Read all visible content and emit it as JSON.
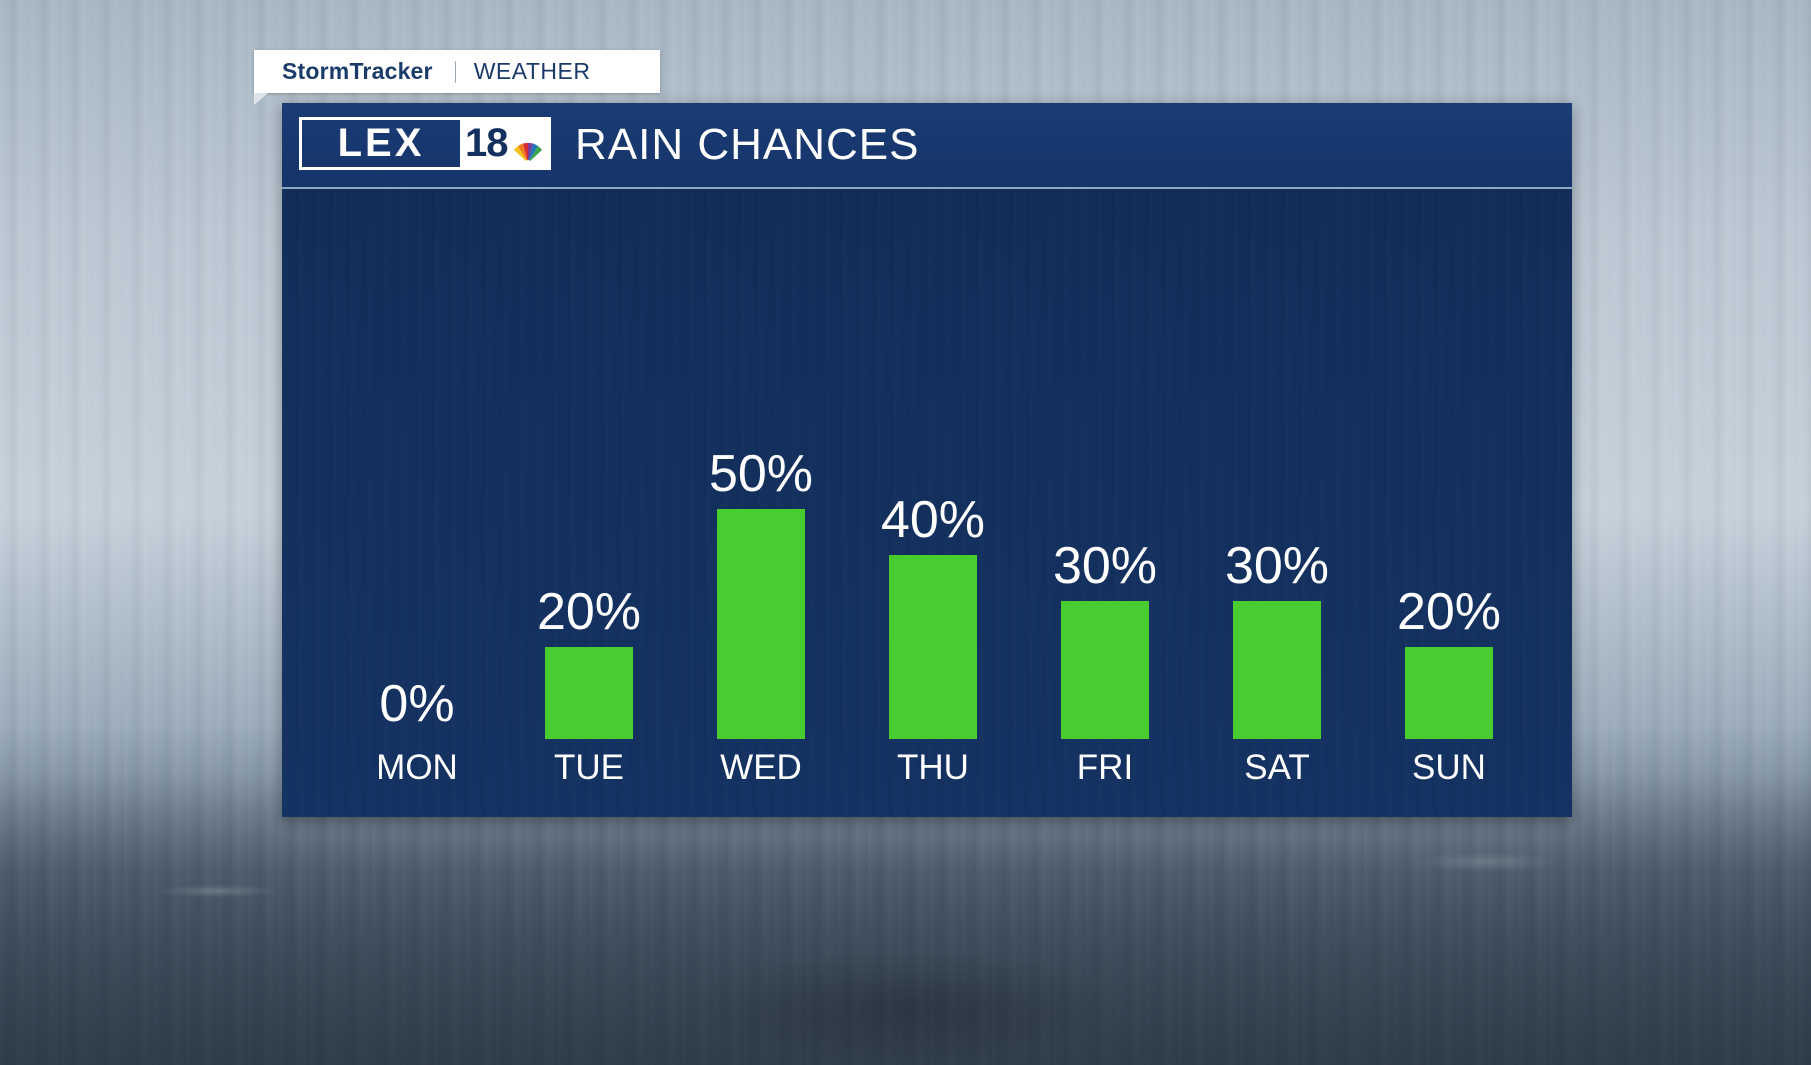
{
  "brand": {
    "storm": "StormTracker",
    "weather": "WEATHER"
  },
  "logo": {
    "lex": "LEX",
    "number": "18",
    "network_icon": "peacock-icon"
  },
  "panel": {
    "title": "RAIN CHANCES"
  },
  "colors": {
    "bar": "#48cc2f",
    "panel": "#13305e",
    "header": "#1a3c74",
    "brand_text": "#1b3b6b"
  },
  "chart_data": {
    "type": "bar",
    "title": "RAIN CHANCES",
    "xlabel": "",
    "ylabel": "",
    "categories": [
      "MON",
      "TUE",
      "WED",
      "THU",
      "FRI",
      "SAT",
      "SUN"
    ],
    "values": [
      0,
      20,
      50,
      40,
      30,
      30,
      20
    ],
    "value_labels": [
      "0%",
      "20%",
      "50%",
      "40%",
      "30%",
      "30%",
      "20%"
    ],
    "ylim": [
      0,
      100
    ],
    "grid": false,
    "legend": "none"
  }
}
